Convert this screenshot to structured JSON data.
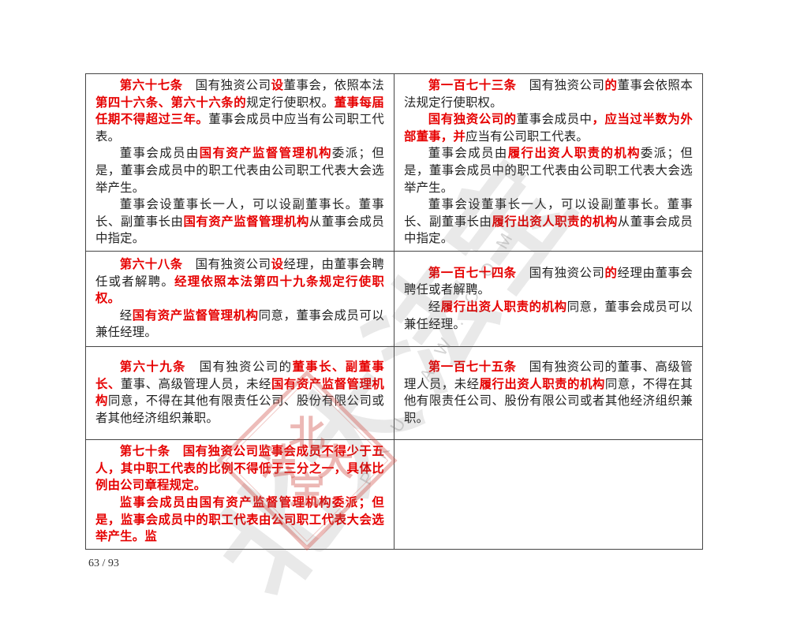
{
  "page": {
    "page_number": "63 / 93"
  },
  "colors": {
    "highlight_red": "#e60000",
    "body_text": "#222222",
    "table_border": "#454545",
    "watermark_gray": "rgba(105,105,105,0.15)",
    "watermark_seal_red": "rgba(207,78,70,0.40)"
  },
  "watermark": {
    "calligraphy_text": "北大法宝",
    "url_text": "P K U L A W . C O M",
    "seal_chars": {
      "top": "北",
      "left": "法",
      "right": "大",
      "bottom": "宝"
    }
  },
  "table": {
    "rows": [
      {
        "left": {
          "paragraphs": [
            [
              {
                "t": "第六十七条",
                "red": true
              },
              {
                "t": "　国有独资公司"
              },
              {
                "t": "设",
                "red": true
              },
              {
                "t": "董事会，依照本法"
              },
              {
                "t": "第四十六条、第六十六条的",
                "red": true
              },
              {
                "t": "规定行使职权。"
              },
              {
                "t": "董事每届任期不得超过三年。",
                "red": true
              },
              {
                "t": "董事会成员中应当有公司职工代表。"
              }
            ],
            [
              {
                "t": "董事会成员由"
              },
              {
                "t": "国有资产监督管理机构",
                "red": true
              },
              {
                "t": "委派；但是，董事会成员中的职工代表由公司职工代表大会选举产生。"
              }
            ],
            [
              {
                "t": "董事会设董事长一人，可以设副董事长。董事长、副董事长由"
              },
              {
                "t": "国有资产监督管理机构",
                "red": true
              },
              {
                "t": "从董事会成员中指定。"
              }
            ]
          ]
        },
        "right": {
          "paragraphs": [
            [
              {
                "t": "第一百七十三条",
                "red": true
              },
              {
                "t": "　国有独资公司"
              },
              {
                "t": "的",
                "red": true
              },
              {
                "t": "董事会依照本法规定行使职权。"
              }
            ],
            [
              {
                "t": "国有独资公司的",
                "red": true
              },
              {
                "t": "董事会成员中"
              },
              {
                "t": "，应当过半数为外部董事，并",
                "red": true
              },
              {
                "t": "应当有公司职工代表。"
              }
            ],
            [
              {
                "t": "董事会成员由"
              },
              {
                "t": "履行出资人职责的机构",
                "red": true
              },
              {
                "t": "委派；但是，董事会成员中的职工代表由公司职工代表大会选举产生。"
              }
            ],
            [
              {
                "t": "董事会设董事长一人，可以设副董事长。董事长、副董事长由"
              },
              {
                "t": "履行出资人职责的机构",
                "red": true
              },
              {
                "t": "从董事会成员中指定。"
              }
            ]
          ]
        }
      },
      {
        "left": {
          "paragraphs": [
            [
              {
                "t": "第六十八条",
                "red": true
              },
              {
                "t": "　国有独资公司"
              },
              {
                "t": "设",
                "red": true
              },
              {
                "t": "经理，由董事会聘任或者解聘。"
              },
              {
                "t": "经理依照本法第四十九条规定行使职权。",
                "red": true
              }
            ],
            [
              {
                "t": "经"
              },
              {
                "t": "国有资产监督管理机构",
                "red": true
              },
              {
                "t": "同意，董事会成员可以兼任经理。"
              }
            ]
          ]
        },
        "right": {
          "paragraphs": [
            [
              {
                "t": "第一百七十四条",
                "red": true
              },
              {
                "t": "　国有独资公司"
              },
              {
                "t": "的",
                "red": true
              },
              {
                "t": "经理由董事会聘任或者解聘。"
              }
            ],
            [
              {
                "t": "经"
              },
              {
                "t": "履行出资人职责的机构",
                "red": true
              },
              {
                "t": "同意，董事会成员可以兼任经理。"
              }
            ]
          ]
        }
      },
      {
        "left": {
          "paragraphs": [
            [
              {
                "t": "第六十九条",
                "red": true
              },
              {
                "t": "　国有独资公司的"
              },
              {
                "t": "董事长、副董事长、",
                "red": true
              },
              {
                "t": "董事、高级管理人员，未经"
              },
              {
                "t": "国有资产监督管理机构",
                "red": true
              },
              {
                "t": "同意，不得在其他有限责任公司、股份有限公司或者其他经济组织兼职。"
              }
            ]
          ]
        },
        "right": {
          "paragraphs": [
            [
              {
                "t": "第一百七十五条",
                "red": true
              },
              {
                "t": "　国有独资公司的董事、高级管理人员，未经"
              },
              {
                "t": "履行出资人职责的机构",
                "red": true
              },
              {
                "t": "同意，不得在其他有限责任公司、股份有限公司或者其他经济组织兼职。"
              }
            ]
          ]
        }
      },
      {
        "left": {
          "paragraphs": [
            [
              {
                "t": "第七十条　国有独资公司监事会成员不得少于五人，其中职工代表的比例不得低于三分之一，具体比例由公司章程规定。",
                "red": true
              }
            ],
            [
              {
                "t": "监事会成员由国有资产监督管理机构委派；但是，监事会成员中的职工代表由公司职工代表大会选举产生。监",
                "red": true
              }
            ]
          ]
        },
        "right": {
          "paragraphs": []
        }
      }
    ]
  }
}
